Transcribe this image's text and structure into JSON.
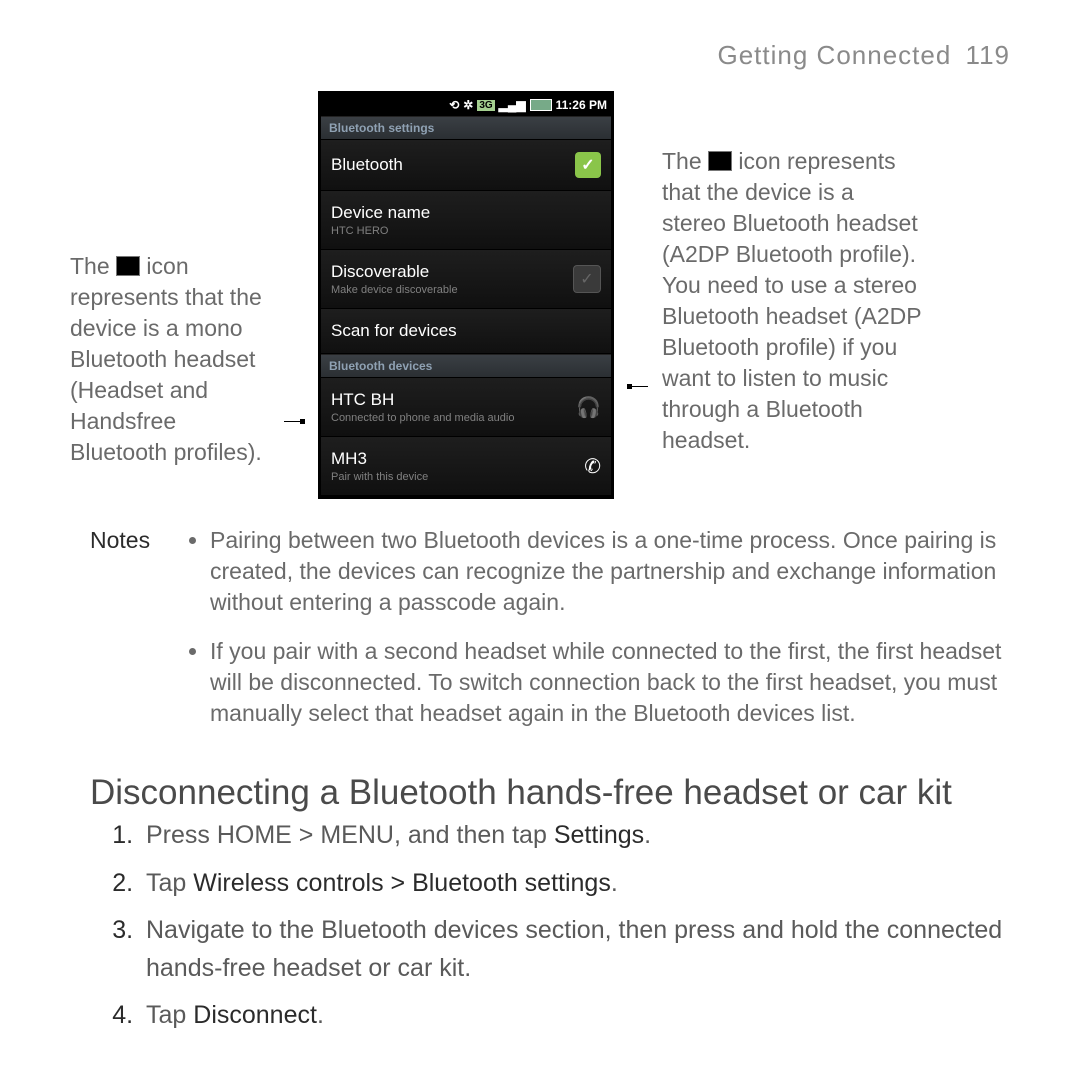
{
  "header": {
    "title": "Getting Connected",
    "page": "119"
  },
  "left_annotation": {
    "prefix": "The ",
    "rest": " icon represents that the device is a mono Bluetooth headset (Headset and Handsfree Bluetooth profiles)."
  },
  "right_annotation": {
    "prefix": "The ",
    "rest": " icon represents that the device is a stereo Bluetooth headset (A2DP Bluetooth profile).",
    "second": "You need to use a stereo Bluetooth headset (A2DP Bluetooth profile) if you want to listen to music through a Bluetooth headset."
  },
  "phone": {
    "statusbar_time": "11:26 PM",
    "sections": {
      "settings_header": "Bluetooth settings",
      "devices_header": "Bluetooth devices"
    },
    "rows": {
      "bluetooth": "Bluetooth",
      "device_name": {
        "label": "Device name",
        "sub": "HTC HERO"
      },
      "discoverable": {
        "label": "Discoverable",
        "sub": "Make device discoverable"
      },
      "scan": "Scan for devices",
      "htc_bh": {
        "label": "HTC BH",
        "sub": "Connected to phone and media audio"
      },
      "mh3": {
        "label": "MH3",
        "sub": "Pair with this device"
      }
    }
  },
  "notes": {
    "label": "Notes",
    "items": [
      "Pairing between two Bluetooth devices is a one-time process. Once pairing is created, the devices can recognize the partnership and exchange information without entering a passcode again.",
      "If you pair with a second headset while connected to the first, the first headset will be disconnected. To switch connection back to the first headset, you must manually select that headset again in the Bluetooth devices list."
    ]
  },
  "h2": "Disconnecting a Bluetooth hands-free headset or car kit",
  "steps": {
    "s1_a": "Press HOME > MENU, and then tap ",
    "s1_b": "Settings",
    "s1_c": ".",
    "s2_a": "Tap ",
    "s2_b": "Wireless controls > Bluetooth settings",
    "s2_c": ".",
    "s3": "Navigate to the Bluetooth devices section, then press and hold the connected hands-free headset or car kit.",
    "s4_a": "Tap ",
    "s4_b": "Disconnect",
    "s4_c": "."
  }
}
